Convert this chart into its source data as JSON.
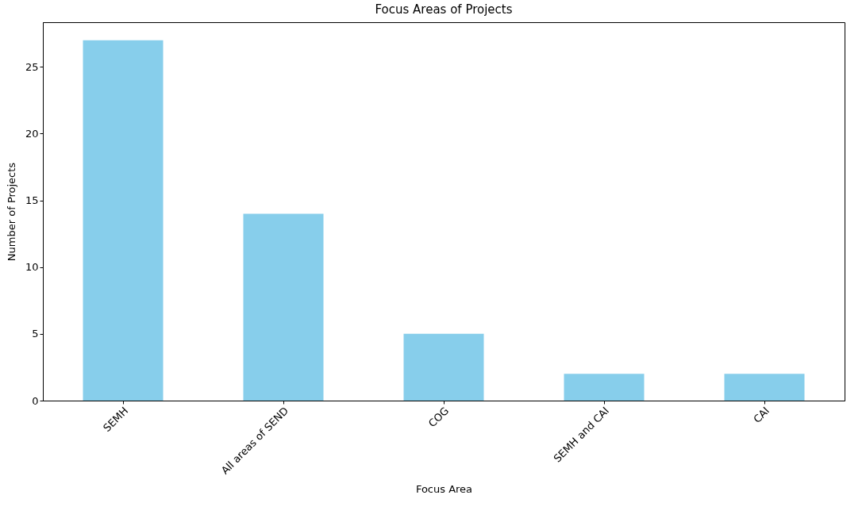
{
  "chart_data": {
    "type": "bar",
    "title": "Focus Areas of Projects",
    "xlabel": "Focus Area",
    "ylabel": "Number of Projects",
    "categories": [
      "SEMH",
      "All areas of SEND",
      "COG",
      "SEMH and CAI",
      "CAI"
    ],
    "values": [
      27,
      14,
      5,
      2,
      2
    ],
    "color": "#87ceeb",
    "ylim": [
      0,
      28.35
    ],
    "yticks": [
      0,
      5,
      10,
      15,
      20,
      25
    ]
  }
}
